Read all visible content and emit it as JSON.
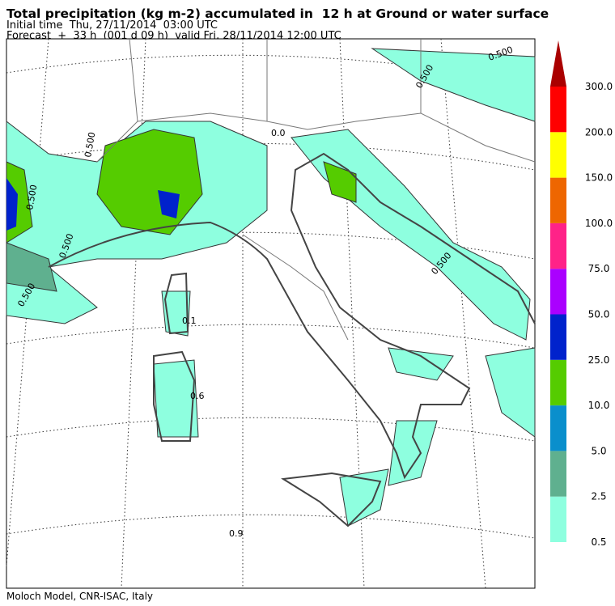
{
  "header": {
    "title": "Total precipitation (kg m-2) accumulated in  12 h at Ground or water surface",
    "initial_time": "Initial time  Thu, 27/11/2014  03:00 UTC",
    "forecast": "Forecast  +  33 h  (001 d 09 h)  valid Fri, 28/11/2014 12:00 UTC"
  },
  "footer": "Moloch Model, CNR-ISAC, Italy",
  "colorbar": {
    "levels": [
      {
        "value": 0.5,
        "label": "0.5"
      },
      {
        "value": 2.5,
        "label": "2.5"
      },
      {
        "value": 5,
        "label": "5.0"
      },
      {
        "value": 10,
        "label": "10.0"
      },
      {
        "value": 25,
        "label": "25.0"
      },
      {
        "value": 50,
        "label": "50.0"
      },
      {
        "value": 75,
        "label": "75.0"
      },
      {
        "value": 100,
        "label": "100.0"
      },
      {
        "value": 150,
        "label": "150.0"
      },
      {
        "value": 200,
        "label": "200.0"
      },
      {
        "value": 300,
        "label": "300.0"
      }
    ],
    "colors": [
      "#8effdf",
      "#5fb08f",
      "#0a8fcc",
      "#55cc00",
      "#0022cc",
      "#aa00ff",
      "#ff2288",
      "#ee6600",
      "#ffff00",
      "#ff0000"
    ],
    "over_color": "#aa0000"
  },
  "contour_labels": [
    "0.500",
    "0.500",
    "0.500",
    "0.500",
    "0.500",
    "0.500",
    "0.1",
    "0.6",
    "0.9",
    "0.0",
    "0.500"
  ]
}
